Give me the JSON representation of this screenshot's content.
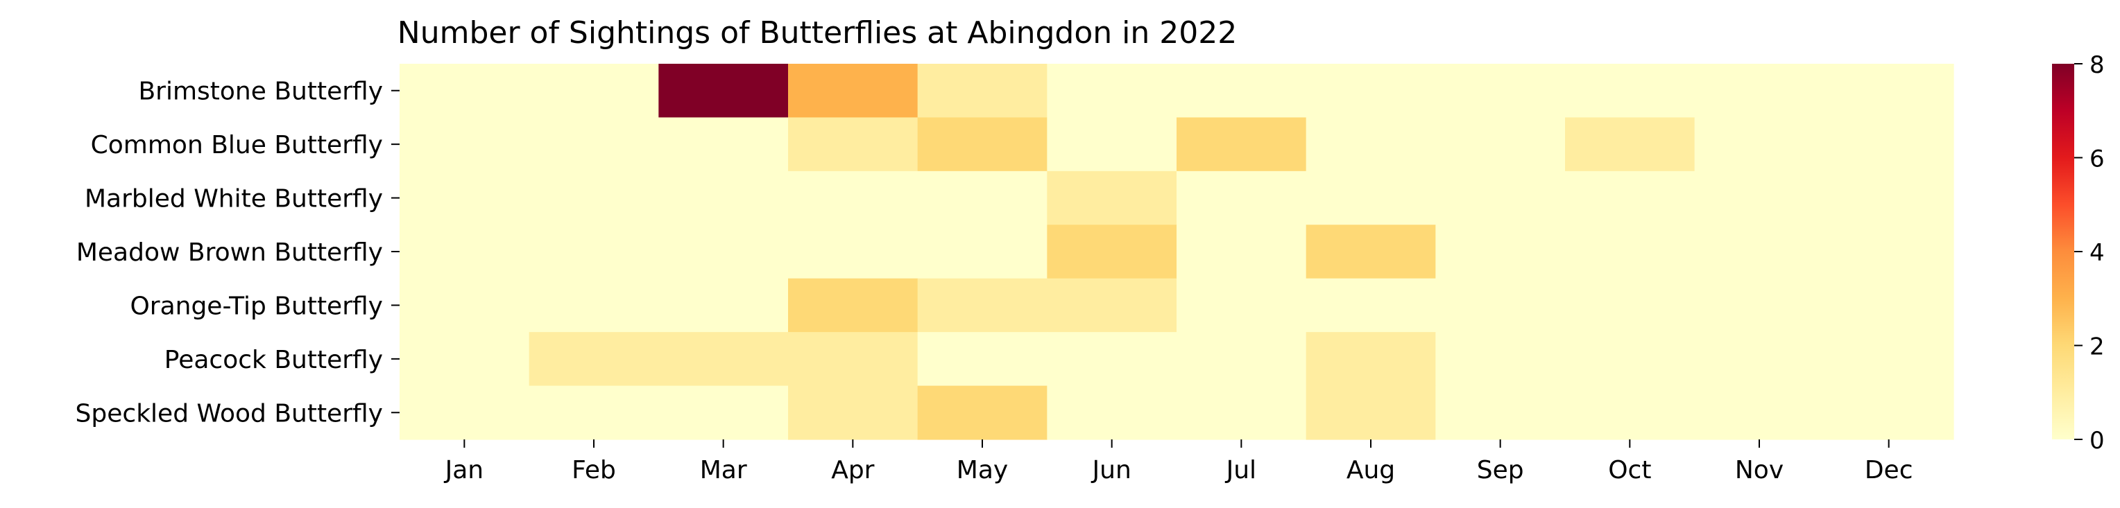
{
  "chart_data": {
    "type": "heatmap",
    "title": "Number of Sightings of Butterflies at Abingdon in 2022",
    "xlabel": "",
    "ylabel": "",
    "columns": [
      "Jan",
      "Feb",
      "Mar",
      "Apr",
      "May",
      "Jun",
      "Jul",
      "Aug",
      "Sep",
      "Oct",
      "Nov",
      "Dec"
    ],
    "rows": [
      "Brimstone Butterfly",
      "Common Blue Butterfly",
      "Marbled White Butterfly",
      "Meadow Brown Butterfly",
      "Orange-Tip Butterfly",
      "Peacock Butterfly",
      "Speckled Wood Butterfly"
    ],
    "values": [
      [
        0,
        0,
        8,
        3,
        1,
        0,
        0,
        0,
        0,
        0,
        0,
        0
      ],
      [
        0,
        0,
        0,
        1,
        2,
        0,
        2,
        0,
        0,
        1,
        0,
        0
      ],
      [
        0,
        0,
        0,
        0,
        0,
        1,
        0,
        0,
        0,
        0,
        0,
        0
      ],
      [
        0,
        0,
        0,
        0,
        0,
        2,
        0,
        2,
        0,
        0,
        0,
        0
      ],
      [
        0,
        0,
        0,
        2,
        1,
        1,
        0,
        0,
        0,
        0,
        0,
        0
      ],
      [
        0,
        1,
        1,
        1,
        0,
        0,
        0,
        1,
        0,
        0,
        0,
        0
      ],
      [
        0,
        0,
        0,
        1,
        2,
        0,
        0,
        1,
        0,
        0,
        0,
        0
      ]
    ],
    "colorbar": {
      "min": 0,
      "max": 8,
      "ticks": [
        "0",
        "2",
        "4",
        "6",
        "8"
      ],
      "colormap": "YlOrRd",
      "colors": [
        "#ffffcc",
        "#ffeda0",
        "#fed976",
        "#feb24c",
        "#fd8d3c",
        "#fc4e2a",
        "#e31a1c",
        "#bd0026",
        "#800026"
      ]
    }
  }
}
